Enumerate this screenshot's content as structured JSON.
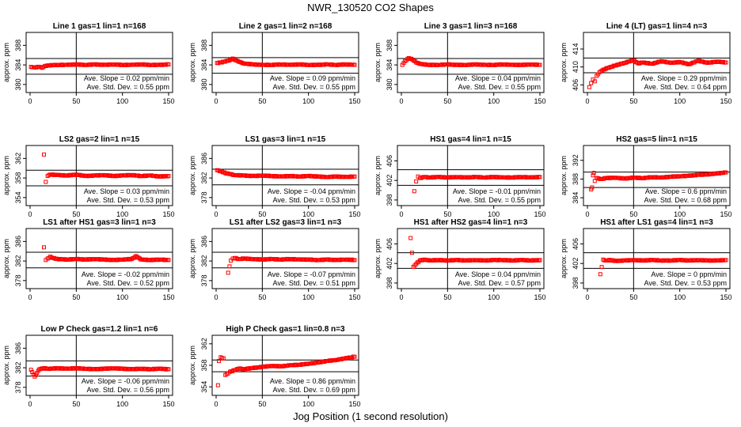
{
  "figure": {
    "title": "NWR_130520   CO2 Shapes",
    "xlabel": "Jog Position (1 second resolution)"
  },
  "colors": {
    "points": "#ff0000",
    "axes": "#000000",
    "background": "#ffffff"
  },
  "chart_data": [
    {
      "type": "scatter",
      "title": "Line 1 gas=1 lin=1 n=168",
      "ylabel": "approx. ppm",
      "xlim": [
        0,
        150
      ],
      "xticks": [
        0,
        50,
        100,
        150
      ],
      "ylim": [
        379,
        390
      ],
      "yticks": [
        380,
        384,
        388
      ],
      "hlines": [
        385.3,
        382.1
      ],
      "vline": 50,
      "slope_text": "Ave. Slope = 0.02  ppm/min",
      "std_text": "Ave. Std. Dev. = 0.55  ppm",
      "series": [
        {
          "x": [
            1,
            5,
            10,
            13,
            16,
            20,
            30,
            40,
            50,
            60,
            70,
            80,
            90,
            100,
            110,
            120,
            130,
            140,
            150
          ],
          "y": [
            383.6,
            383.5,
            383.6,
            383.4,
            383.8,
            383.9,
            384.0,
            384.0,
            384.1,
            384.0,
            384.1,
            384.0,
            384.1,
            384.0,
            384.0,
            384.1,
            384.0,
            384.0,
            384.1
          ]
        }
      ]
    },
    {
      "type": "scatter",
      "title": "Line 2 gas=1 lin=2 n=168",
      "ylabel": "approx. ppm",
      "xlim": [
        0,
        150
      ],
      "xticks": [
        0,
        50,
        100,
        150
      ],
      "ylim": [
        379,
        390
      ],
      "yticks": [
        380,
        384,
        388
      ],
      "hlines": [
        385.5,
        382.3
      ],
      "vline": 50,
      "slope_text": "Ave. Slope = 0.09  ppm/min",
      "std_text": "Ave. Std. Dev. = 0.55  ppm",
      "series": [
        {
          "x": [
            1,
            5,
            10,
            15,
            18,
            22,
            26,
            30,
            40,
            50,
            60,
            70,
            80,
            90,
            100,
            110,
            120,
            130,
            140,
            150
          ],
          "y": [
            384.4,
            384.5,
            384.7,
            385.0,
            385.3,
            384.9,
            384.6,
            384.3,
            384.1,
            384.0,
            384.0,
            384.1,
            384.0,
            384.1,
            384.0,
            384.0,
            384.1,
            384.0,
            384.1,
            384.0
          ]
        }
      ]
    },
    {
      "type": "scatter",
      "title": "Line 3 gas=1 lin=3 n=168",
      "ylabel": "approx. ppm",
      "xlim": [
        0,
        150
      ],
      "xticks": [
        0,
        50,
        100,
        150
      ],
      "ylim": [
        379,
        390
      ],
      "yticks": [
        380,
        384,
        388
      ],
      "hlines": [
        385.3,
        382.1
      ],
      "vline": 50,
      "slope_text": "Ave. Slope = 0.04  ppm/min",
      "std_text": "Ave. Std. Dev. = 0.55  ppm",
      "series": [
        {
          "x": [
            1,
            4,
            8,
            12,
            16,
            20,
            30,
            40,
            50,
            60,
            70,
            80,
            90,
            100,
            110,
            120,
            130,
            140,
            150
          ],
          "y": [
            384.0,
            384.8,
            385.4,
            385.1,
            384.5,
            384.2,
            384.0,
            384.0,
            384.1,
            384.0,
            384.0,
            384.1,
            384.0,
            384.0,
            384.1,
            384.0,
            384.0,
            384.1,
            384.0
          ]
        }
      ]
    },
    {
      "type": "scatter",
      "title": "Line 4 (LT) gas=1 lin=4 n=3",
      "ylabel": "approx. ppm",
      "xlim": [
        0,
        150
      ],
      "xticks": [
        0,
        50,
        100,
        150
      ],
      "ylim": [
        405,
        417
      ],
      "yticks": [
        406,
        410,
        414
      ],
      "hlines": [
        412.0,
        408.7
      ],
      "vline": 50,
      "slope_text": "Ave. Slope = 0.29  ppm/min",
      "std_text": "Ave. Std. Dev. = 0.64  ppm",
      "series": [
        {
          "x": [
            2,
            4,
            6,
            8,
            10,
            13,
            16,
            20,
            25,
            30,
            35,
            40,
            45,
            50,
            55,
            60,
            70,
            80,
            90,
            100,
            110,
            120,
            130,
            140,
            150
          ],
          "y": [
            405.5,
            406.4,
            407.2,
            406.8,
            408.0,
            408.8,
            409.2,
            409.6,
            410.0,
            410.3,
            410.6,
            410.9,
            411.2,
            411.5,
            410.8,
            411.0,
            410.7,
            411.3,
            410.9,
            411.1,
            410.6,
            411.4,
            410.9,
            411.2,
            411.0
          ]
        }
      ]
    },
    {
      "type": "scatter",
      "title": "LS2 gas=2 lin=1 n=15",
      "ylabel": "approx. ppm",
      "xlim": [
        0,
        150
      ],
      "xticks": [
        0,
        50,
        100,
        150
      ],
      "ylim": [
        353,
        364
      ],
      "yticks": [
        354,
        358,
        362
      ],
      "hlines": [
        359.6,
        356.4
      ],
      "vline": 50,
      "slope_text": "Ave. Slope = 0.03  ppm/min",
      "std_text": "Ave. Std. Dev. = 0.53  ppm",
      "series": [
        {
          "x": [
            15,
            17,
            19,
            22,
            30,
            40,
            50,
            60,
            70,
            80,
            90,
            100,
            110,
            120,
            130,
            140,
            150
          ],
          "y": [
            362.8,
            357.2,
            358.4,
            358.7,
            358.6,
            358.5,
            358.7,
            358.4,
            358.5,
            358.6,
            358.4,
            358.5,
            358.6,
            358.4,
            358.5,
            358.3,
            358.4
          ]
        }
      ]
    },
    {
      "type": "scatter",
      "title": "LS1 gas=3 lin=1 n=15",
      "ylabel": "approx. ppm",
      "xlim": [
        0,
        150
      ],
      "xticks": [
        0,
        50,
        100,
        150
      ],
      "ylim": [
        377,
        388
      ],
      "yticks": [
        378,
        382,
        386
      ],
      "hlines": [
        383.8,
        380.6
      ],
      "vline": 50,
      "slope_text": "Ave. Slope = -0.04  ppm/min",
      "std_text": "Ave. Std. Dev. = 0.53  ppm",
      "series": [
        {
          "x": [
            1,
            5,
            10,
            15,
            20,
            30,
            40,
            50,
            60,
            70,
            80,
            90,
            100,
            110,
            120,
            130,
            140,
            150
          ],
          "y": [
            383.6,
            383.4,
            383.0,
            382.8,
            382.6,
            382.5,
            382.4,
            382.5,
            382.4,
            382.3,
            382.4,
            382.3,
            382.4,
            382.3,
            382.2,
            382.3,
            382.2,
            382.3
          ]
        }
      ]
    },
    {
      "type": "scatter",
      "title": "HS1 gas=4 lin=1 n=15",
      "ylabel": "approx. ppm",
      "xlim": [
        0,
        150
      ],
      "xticks": [
        0,
        50,
        100,
        150
      ],
      "ylim": [
        397.5,
        408.5
      ],
      "yticks": [
        398,
        402,
        406
      ],
      "hlines": [
        404.2,
        401.0
      ],
      "vline": 50,
      "slope_text": "Ave. Slope = -0.01  ppm/min",
      "std_text": "Ave. Std. Dev. = 0.55  ppm",
      "series": [
        {
          "x": [
            14,
            16,
            18,
            20,
            25,
            30,
            40,
            50,
            60,
            70,
            80,
            90,
            100,
            110,
            120,
            130,
            140,
            150
          ],
          "y": [
            399.8,
            401.8,
            402.8,
            402.5,
            402.7,
            402.6,
            402.7,
            402.6,
            402.7,
            402.6,
            402.7,
            402.6,
            402.7,
            402.6,
            402.6,
            402.7,
            402.6,
            402.7
          ]
        }
      ]
    },
    {
      "type": "scatter",
      "title": "HS2 gas=5 lin=1 n=15",
      "ylabel": "approx. ppm",
      "xlim": [
        0,
        150
      ],
      "xticks": [
        0,
        50,
        100,
        150
      ],
      "ylim": [
        383,
        394.5
      ],
      "yticks": [
        384,
        388,
        392
      ],
      "hlines": [
        389.5,
        386.2
      ],
      "vline": 50,
      "slope_text": "Ave. Slope = 0.6  ppm/min",
      "std_text": "Ave. Std. Dev. = 0.68  ppm",
      "series": [
        {
          "x": [
            4,
            5,
            6,
            7,
            8,
            10,
            15,
            20,
            30,
            40,
            50,
            60,
            70,
            80,
            90,
            100,
            110,
            120,
            130,
            140,
            150
          ],
          "y": [
            385.8,
            386.2,
            388.8,
            389.3,
            387.6,
            388.2,
            388.0,
            388.2,
            388.3,
            388.1,
            388.3,
            388.2,
            388.4,
            388.3,
            388.5,
            388.6,
            388.7,
            388.9,
            389.0,
            389.2,
            389.4
          ]
        }
      ]
    },
    {
      "type": "scatter",
      "title": "LS1 after HS1 gas=3 lin=1 n=3",
      "ylabel": "approx. ppm",
      "xlim": [
        0,
        150
      ],
      "xticks": [
        0,
        50,
        100,
        150
      ],
      "ylim": [
        377,
        388
      ],
      "yticks": [
        378,
        382,
        386
      ],
      "hlines": [
        383.8,
        380.6
      ],
      "vline": 50,
      "slope_text": "Ave. Slope = -0.02  ppm/min",
      "std_text": "Ave. Std. Dev. = 0.52  ppm",
      "series": [
        {
          "x": [
            15,
            17,
            19,
            22,
            25,
            30,
            40,
            50,
            60,
            70,
            80,
            90,
            100,
            110,
            115,
            120,
            130,
            140,
            150
          ],
          "y": [
            384.8,
            382.2,
            382.5,
            382.9,
            382.6,
            382.4,
            382.3,
            382.4,
            382.3,
            382.4,
            382.3,
            382.2,
            382.3,
            382.4,
            383.0,
            382.3,
            382.2,
            382.3,
            382.2
          ]
        }
      ]
    },
    {
      "type": "scatter",
      "title": "LS1 after LS2 gas=3 lin=1 n=3",
      "ylabel": "approx. ppm",
      "xlim": [
        0,
        150
      ],
      "xticks": [
        0,
        50,
        100,
        150
      ],
      "ylim": [
        377,
        388
      ],
      "yticks": [
        378,
        382,
        386
      ],
      "hlines": [
        383.8,
        380.6
      ],
      "vline": 50,
      "slope_text": "Ave. Slope = -0.07  ppm/min",
      "std_text": "Ave. Std. Dev. = 0.51  ppm",
      "series": [
        {
          "x": [
            13,
            16,
            18,
            20,
            25,
            30,
            40,
            50,
            60,
            70,
            80,
            90,
            100,
            110,
            120,
            130,
            140,
            150
          ],
          "y": [
            379.6,
            382.1,
            382.5,
            382.6,
            382.4,
            382.5,
            382.4,
            382.3,
            382.4,
            382.3,
            382.4,
            382.3,
            382.3,
            382.2,
            382.3,
            382.2,
            382.3,
            382.2
          ]
        }
      ]
    },
    {
      "type": "scatter",
      "title": "HS1 after HS2 gas=4 lin=1 n=3",
      "ylabel": "approx. ppm",
      "xlim": [
        0,
        150
      ],
      "xticks": [
        0,
        50,
        100,
        150
      ],
      "ylim": [
        397.5,
        408.5
      ],
      "yticks": [
        398,
        402,
        406
      ],
      "hlines": [
        404.2,
        401.0
      ],
      "vline": 50,
      "slope_text": "Ave. Slope = 0.04  ppm/min",
      "std_text": "Ave. Std. Dev. = 0.57  ppm",
      "series": [
        {
          "x": [
            10,
            13,
            16,
            20,
            25,
            30,
            40,
            50,
            60,
            70,
            80,
            90,
            100,
            110,
            120,
            130,
            140,
            150
          ],
          "y": [
            407.2,
            401.3,
            401.9,
            402.6,
            402.8,
            402.6,
            402.7,
            402.6,
            402.7,
            402.6,
            402.7,
            402.6,
            402.7,
            402.7,
            402.6,
            402.7,
            402.6,
            402.7
          ]
        }
      ]
    },
    {
      "type": "scatter",
      "title": "HS1 after LS1 gas=4 lin=1 n=3",
      "ylabel": "approx. ppm",
      "xlim": [
        0,
        150
      ],
      "xticks": [
        0,
        50,
        100,
        150
      ],
      "ylim": [
        397.5,
        408.5
      ],
      "yticks": [
        398,
        402,
        406
      ],
      "hlines": [
        404.2,
        401.0
      ],
      "vline": 50,
      "slope_text": "Ave. Slope = 0  ppm/min",
      "std_text": "Ave. Std. Dev. = 0.53  ppm",
      "series": [
        {
          "x": [
            14,
            17,
            20,
            25,
            30,
            40,
            50,
            60,
            70,
            80,
            90,
            100,
            110,
            120,
            130,
            140,
            150
          ],
          "y": [
            399.8,
            402.8,
            402.6,
            402.7,
            402.5,
            402.6,
            402.7,
            402.6,
            402.7,
            402.6,
            402.6,
            402.7,
            402.6,
            402.7,
            402.6,
            402.6,
            402.7
          ]
        }
      ]
    },
    {
      "type": "scatter",
      "title": "Low P Check gas=1.2 lin=1 n=6",
      "ylabel": "approx. ppm",
      "xlim": [
        0,
        150
      ],
      "xticks": [
        0,
        50,
        100,
        150
      ],
      "ylim": [
        377,
        388
      ],
      "yticks": [
        378,
        382,
        386
      ],
      "hlines": [
        383.4,
        380.3
      ],
      "vline": 50,
      "slope_text": "Ave. Slope = -0.06  ppm/min",
      "std_text": "Ave. Std. Dev. = 0.56  ppm",
      "series": [
        {
          "x": [
            1,
            5,
            10,
            15,
            20,
            30,
            40,
            50,
            60,
            70,
            80,
            90,
            100,
            110,
            120,
            130,
            140,
            150
          ],
          "y": [
            381.6,
            380.2,
            381.7,
            381.9,
            381.8,
            381.9,
            381.8,
            381.9,
            381.8,
            381.7,
            381.8,
            381.9,
            381.8,
            381.7,
            381.8,
            381.7,
            381.8,
            381.7
          ]
        }
      ]
    },
    {
      "type": "scatter",
      "title": "High P Check gas=1 lin=0.8 n=3",
      "ylabel": "approx. ppm",
      "xlim": [
        0,
        150
      ],
      "xticks": [
        0,
        50,
        100,
        150
      ],
      "ylim": [
        353,
        363
      ],
      "yticks": [
        354,
        358,
        362
      ],
      "hlines": [
        359.0,
        356.8
      ],
      "vline": 50,
      "slope_text": "Ave. Slope = 0.86  ppm/min",
      "std_text": "Ave. Std. Dev. = 0.69  ppm",
      "series": [
        {
          "x": [
            2,
            3,
            5,
            8,
            10,
            13,
            15,
            20,
            25,
            30,
            40,
            50,
            60,
            70,
            80,
            90,
            100,
            110,
            120,
            130,
            140,
            150
          ],
          "y": [
            354.3,
            358.8,
            359.5,
            359.3,
            356.2,
            356.5,
            356.8,
            357.1,
            357.4,
            357.3,
            357.5,
            357.7,
            357.9,
            357.8,
            358.0,
            358.1,
            358.3,
            358.5,
            358.8,
            359.0,
            359.3,
            359.6
          ]
        }
      ]
    }
  ]
}
